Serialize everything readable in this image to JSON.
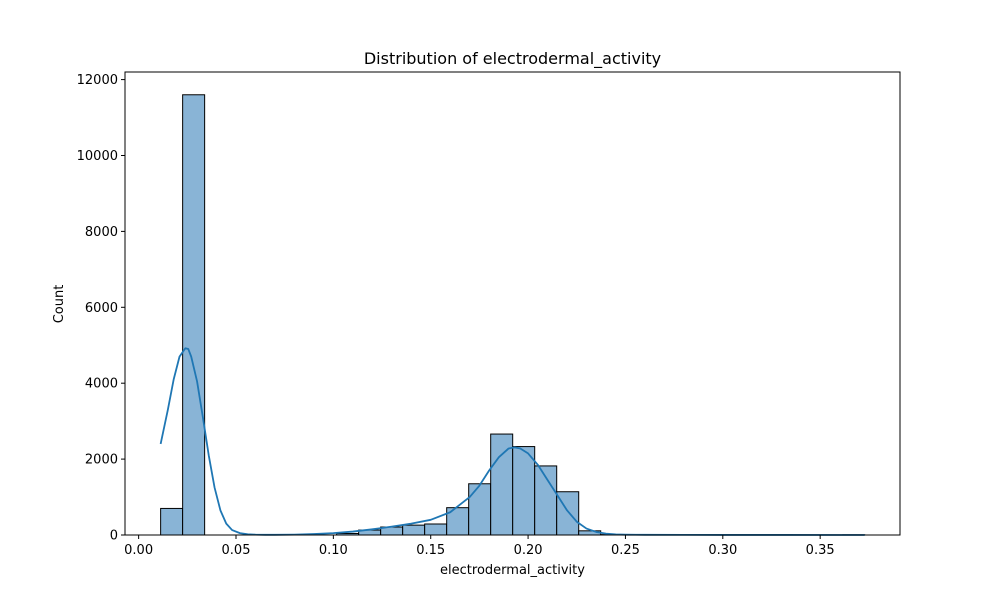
{
  "chart_data": {
    "type": "bar",
    "title": "Distribution of electrodermal_activity",
    "xlabel": "electrodermal_activity",
    "ylabel": "Count",
    "xlim": [
      -0.007,
      0.391
    ],
    "ylim": [
      0,
      12200
    ],
    "x_ticks": [
      0.0,
      0.05,
      0.1,
      0.15,
      0.2,
      0.25,
      0.3,
      0.35
    ],
    "x_tick_labels": [
      "0.00",
      "0.05",
      "0.10",
      "0.15",
      "0.20",
      "0.25",
      "0.30",
      "0.35"
    ],
    "y_ticks": [
      0,
      2000,
      4000,
      6000,
      8000,
      10000,
      12000
    ],
    "y_tick_labels": [
      "0",
      "2000",
      "4000",
      "6000",
      "8000",
      "10000",
      "12000"
    ],
    "bin_edges": [
      0.0113,
      0.0226,
      0.0339,
      0.0452,
      0.0565,
      0.0678,
      0.0791,
      0.0904,
      0.1017,
      0.113,
      0.1243,
      0.1356,
      0.1469,
      0.1582,
      0.1695,
      0.1808,
      0.1921,
      0.2034,
      0.2147,
      0.226,
      0.2373,
      0.2486,
      0.2599,
      0.2712,
      0.2825,
      0.2938,
      0.3051,
      0.3164,
      0.3277,
      0.339,
      0.3503,
      0.3616,
      0.3729
    ],
    "counts": [
      700,
      11600,
      0,
      0,
      0,
      0,
      0,
      0,
      40,
      130,
      210,
      260,
      290,
      720,
      1350,
      2660,
      2330,
      1820,
      1140,
      110,
      10,
      0,
      0,
      0,
      0,
      0,
      0,
      0,
      0,
      0,
      0,
      5
    ],
    "kde": {
      "name": "kde",
      "x": [
        0.0113,
        0.015,
        0.018,
        0.021,
        0.024,
        0.0255,
        0.027,
        0.03,
        0.033,
        0.036,
        0.039,
        0.042,
        0.045,
        0.048,
        0.052,
        0.056,
        0.06,
        0.065,
        0.07,
        0.08,
        0.09,
        0.1,
        0.11,
        0.12,
        0.13,
        0.14,
        0.15,
        0.16,
        0.17,
        0.175,
        0.18,
        0.185,
        0.19,
        0.193,
        0.196,
        0.2,
        0.205,
        0.21,
        0.215,
        0.22,
        0.225,
        0.23,
        0.235,
        0.24,
        0.245,
        0.25,
        0.26,
        0.28,
        0.3,
        0.33,
        0.3729
      ],
      "y": [
        2400,
        3300,
        4100,
        4700,
        4920,
        4900,
        4700,
        4050,
        3100,
        2100,
        1250,
        650,
        300,
        130,
        50,
        20,
        10,
        5,
        5,
        10,
        25,
        50,
        90,
        150,
        220,
        300,
        400,
        600,
        1000,
        1300,
        1700,
        2050,
        2280,
        2310,
        2280,
        2150,
        1850,
        1450,
        1050,
        650,
        350,
        170,
        80,
        35,
        15,
        8,
        5,
        3,
        2,
        1,
        0
      ]
    },
    "colors": {
      "bar_fill": "#89b4d6",
      "bar_edge": "#000000",
      "kde_line": "#1f77b4",
      "axes": "#000000"
    },
    "grid": false
  }
}
